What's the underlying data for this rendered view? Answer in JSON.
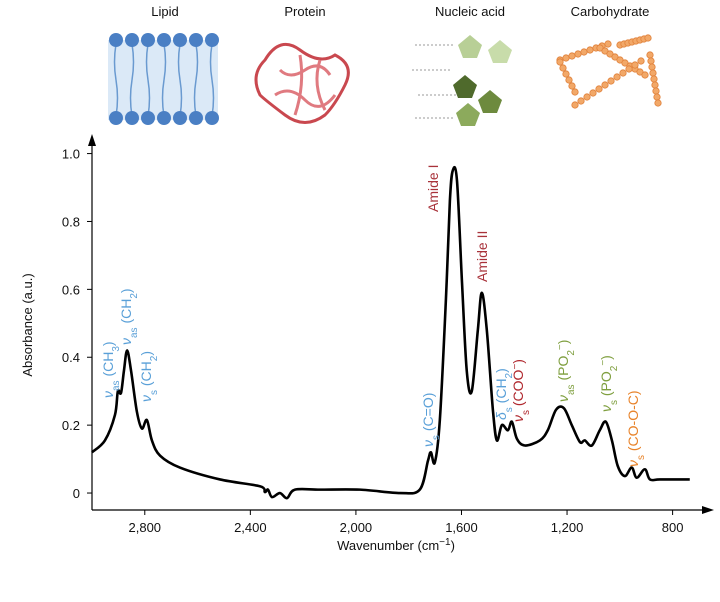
{
  "chart_data": {
    "type": "line",
    "icon_labels": [
      "Lipid",
      "Protein",
      "Nucleic acid",
      "Carbohydrate"
    ],
    "ylabel": "Absorbance (a.u.)",
    "xlabel": [
      {
        "t": "Wavenumber (cm"
      },
      {
        "t": "−1",
        "pos": "sup"
      },
      {
        "t": ")"
      }
    ],
    "xlim": [
      3000,
      700
    ],
    "ylim": [
      -0.05,
      1.04
    ],
    "xticks": [
      {
        "value": 2800,
        "label": "2,800"
      },
      {
        "value": 2400,
        "label": "2,400"
      },
      {
        "value": 2000,
        "label": "2,000"
      },
      {
        "value": 1600,
        "label": "1,600"
      },
      {
        "value": 1200,
        "label": "1,200"
      },
      800
    ],
    "yticks": [
      0,
      0.2,
      0.4,
      0.6,
      0.8,
      {
        "value": 1,
        "label": "1.0"
      }
    ],
    "color": "#000000",
    "x": [
      3000,
      2951,
      2913,
      2902,
      2890,
      2879,
      2867,
      2852,
      2830,
      2811,
      2792,
      2773,
      2742,
      2667,
      2515,
      2364,
      2345,
      2333,
      2318,
      2288,
      2261,
      2231,
      2136,
      1985,
      1833,
      1758,
      1727,
      1716,
      1701,
      1682,
      1659,
      1644,
      1633,
      1617,
      1598,
      1580,
      1561,
      1538,
      1523,
      1504,
      1481,
      1466,
      1447,
      1424,
      1409,
      1390,
      1360,
      1303,
      1273,
      1242,
      1212,
      1182,
      1151,
      1133,
      1106,
      1076,
      1053,
      1030,
      1008,
      981,
      955,
      936,
      905,
      886,
      848,
      735
    ],
    "values": [
      0.12,
      0.155,
      0.23,
      0.3,
      0.295,
      0.36,
      0.42,
      0.36,
      0.24,
      0.19,
      0.215,
      0.155,
      0.11,
      0.075,
      0.04,
      0.02,
      0.003,
      0.01,
      -0.012,
      0,
      -0.015,
      0.01,
      0.01,
      0.01,
      0,
      0.01,
      0.095,
      0.12,
      0.09,
      0.215,
      0.57,
      0.86,
      0.95,
      0.92,
      0.62,
      0.36,
      0.3,
      0.48,
      0.59,
      0.48,
      0.245,
      0.155,
      0.2,
      0.185,
      0.21,
      0.16,
      0.14,
      0.155,
      0.185,
      0.245,
      0.25,
      0.2,
      0.15,
      0.155,
      0.14,
      0.185,
      0.21,
      0.155,
      0.08,
      0.05,
      0.075,
      0.045,
      0.07,
      0.04,
      0.04,
      0.04
    ],
    "annotations": [
      {
        "color": "#5aa0d8",
        "parts": [
          {
            "t": "ν"
          },
          {
            "t": "as",
            "pos": "sub"
          },
          {
            "t": " (CH"
          },
          {
            "t": "3",
            "pos": "sub"
          },
          {
            "t": ")"
          }
        ]
      },
      {
        "color": "#5aa0d8",
        "parts": [
          {
            "t": "ν"
          },
          {
            "t": "as",
            "pos": "sub"
          },
          {
            "t": " (CH"
          },
          {
            "t": "2",
            "pos": "sub"
          },
          {
            "t": ")"
          }
        ]
      },
      {
        "color": "#5aa0d8",
        "parts": [
          {
            "t": "ν"
          },
          {
            "t": "s",
            "pos": "sub"
          },
          {
            "t": " (CH"
          },
          {
            "t": "2",
            "pos": "sub"
          },
          {
            "t": ")"
          }
        ]
      },
      {
        "color": "#5aa0d8",
        "parts": [
          {
            "t": "ν"
          },
          {
            "t": "s",
            "pos": "sub"
          },
          {
            "t": " (C=O)"
          }
        ]
      },
      {
        "color": "#a8323a",
        "parts": [
          {
            "t": "Amide I"
          }
        ]
      },
      {
        "color": "#a8323a",
        "parts": [
          {
            "t": "Amide II"
          }
        ]
      },
      {
        "color": "#5aa0d8",
        "parts": [
          {
            "t": "δ"
          },
          {
            "t": "s",
            "pos": "sub"
          },
          {
            "t": " (CH"
          },
          {
            "t": "2",
            "pos": "sub"
          },
          {
            "t": ")"
          }
        ]
      },
      {
        "color": "#b0282e",
        "parts": [
          {
            "t": "ν"
          },
          {
            "t": "s",
            "pos": "sub"
          },
          {
            "t": " (COO"
          },
          {
            "t": "−",
            "pos": "sup"
          },
          {
            "t": ")"
          }
        ]
      },
      {
        "color": "#7f9f3f",
        "parts": [
          {
            "t": "ν"
          },
          {
            "t": "as",
            "pos": "sub"
          },
          {
            "t": " (PO"
          },
          {
            "t": "2",
            "pos": "sub"
          },
          {
            "t": "−",
            "pos": "sup"
          },
          {
            "t": ")"
          }
        ]
      },
      {
        "color": "#7f9f3f",
        "parts": [
          {
            "t": "ν"
          },
          {
            "t": "s",
            "pos": "sub"
          },
          {
            "t": " (PO"
          },
          {
            "t": "2",
            "pos": "sub"
          },
          {
            "t": "−",
            "pos": "sup"
          },
          {
            "t": ")"
          }
        ]
      },
      {
        "color": "#e8832a",
        "parts": [
          {
            "t": "ν"
          },
          {
            "t": "s",
            "pos": "sub"
          },
          {
            "t": " (CO-O-C)"
          }
        ]
      }
    ]
  }
}
